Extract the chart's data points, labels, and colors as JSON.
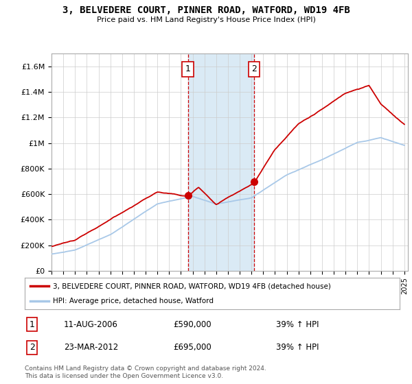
{
  "title": "3, BELVEDERE COURT, PINNER ROAD, WATFORD, WD19 4FB",
  "subtitle": "Price paid vs. HM Land Registry's House Price Index (HPI)",
  "ylim": [
    0,
    1700000
  ],
  "yticks": [
    0,
    200000,
    400000,
    600000,
    800000,
    1000000,
    1200000,
    1400000,
    1600000
  ],
  "ytick_labels": [
    "£0",
    "£200K",
    "£400K",
    "£600K",
    "£800K",
    "£1M",
    "£1.2M",
    "£1.4M",
    "£1.6M"
  ],
  "hpi_color": "#a8c8e8",
  "price_color": "#cc0000",
  "sale1_x": 2006.6,
  "sale1_y": 590000,
  "sale2_x": 2012.23,
  "sale2_y": 695000,
  "shade_start": 2006.6,
  "shade_end": 2012.23,
  "shade_color": "#daeaf5",
  "vline_color": "#cc0000",
  "legend_label_red": "3, BELVEDERE COURT, PINNER ROAD, WATFORD, WD19 4FB (detached house)",
  "legend_label_blue": "HPI: Average price, detached house, Watford",
  "table_row1": [
    "1",
    "11-AUG-2006",
    "£590,000",
    "39% ↑ HPI"
  ],
  "table_row2": [
    "2",
    "23-MAR-2012",
    "£695,000",
    "39% ↑ HPI"
  ],
  "footnote": "Contains HM Land Registry data © Crown copyright and database right 2024.\nThis data is licensed under the Open Government Licence v3.0.",
  "background_color": "#ffffff",
  "grid_color": "#cccccc",
  "xlim_start": 1995,
  "xlim_end": 2025.3
}
